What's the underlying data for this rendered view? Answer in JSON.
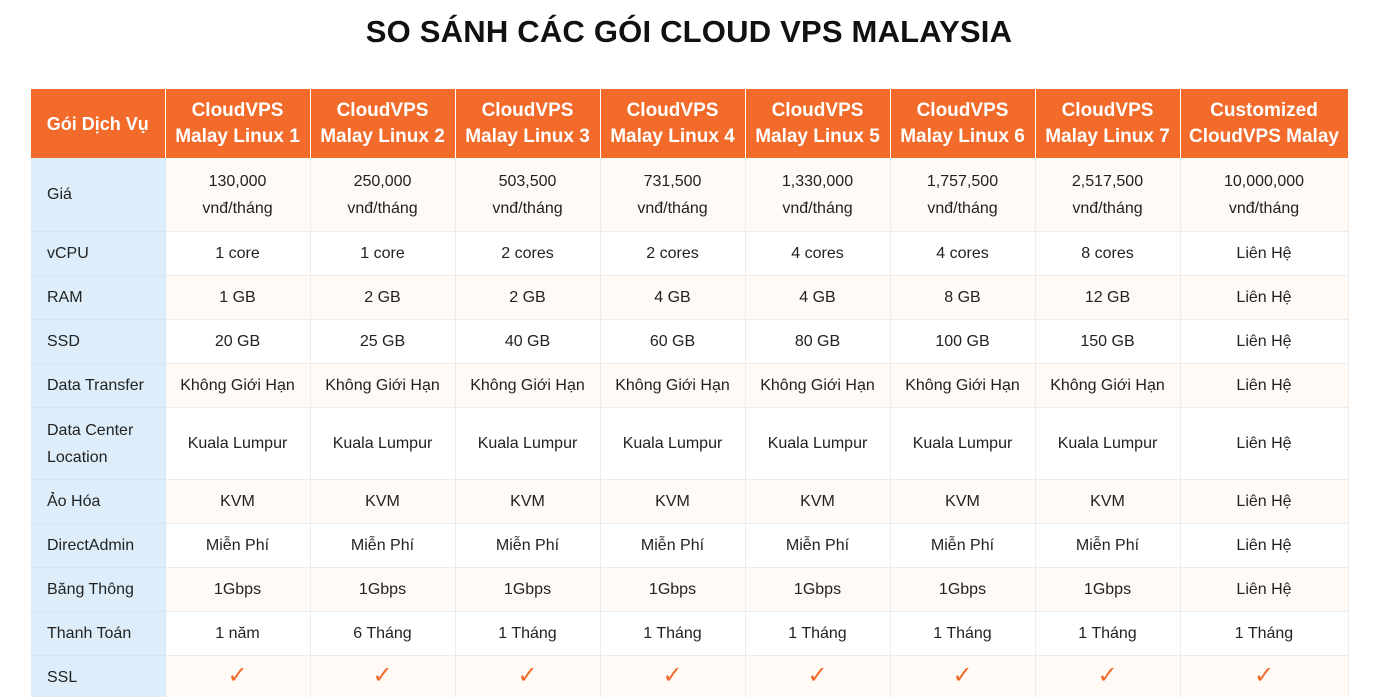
{
  "title": "SO SÁNH CÁC GÓI CLOUD VPS MALAYSIA",
  "table": {
    "corner_header": "Gói Dịch Vụ",
    "plans": [
      "CloudVPS\nMalay Linux 1",
      "CloudVPS\nMalay Linux 2",
      "CloudVPS\nMalay Linux 3",
      "CloudVPS\nMalay Linux 4",
      "CloudVPS\nMalay Linux 5",
      "CloudVPS\nMalay Linux 6",
      "CloudVPS\nMalay Linux 7",
      "Customized\nCloudVPS Malay"
    ],
    "rows": [
      {
        "label": "Giá",
        "values": [
          "130,000\nvnđ/tháng",
          "250,000\nvnđ/tháng",
          "503,500\nvnđ/tháng",
          "731,500\nvnđ/tháng",
          "1,330,000\nvnđ/tháng",
          "1,757,500\nvnđ/tháng",
          "2,517,500\nvnđ/tháng",
          "10,000,000\nvnđ/tháng"
        ]
      },
      {
        "label": "vCPU",
        "values": [
          "1 core",
          "1 core",
          "2 cores",
          "2 cores",
          "4 cores",
          "4 cores",
          "8 cores",
          "Liên Hệ"
        ]
      },
      {
        "label": "RAM",
        "values": [
          "1 GB",
          "2 GB",
          "2 GB",
          "4 GB",
          "4 GB",
          "8 GB",
          "12 GB",
          "Liên Hệ"
        ]
      },
      {
        "label": "SSD",
        "values": [
          "20 GB",
          "25 GB",
          "40 GB",
          "60 GB",
          "80 GB",
          "100 GB",
          "150 GB",
          "Liên Hệ"
        ]
      },
      {
        "label": "Data Transfer",
        "values": [
          "Không Giới Hạn",
          "Không Giới Hạn",
          "Không Giới Hạn",
          "Không Giới Hạn",
          "Không Giới Hạn",
          "Không Giới Hạn",
          "Không Giới Hạn",
          "Liên Hệ"
        ]
      },
      {
        "label": "Data Center\nLocation",
        "values": [
          "Kuala Lumpur",
          "Kuala Lumpur",
          "Kuala Lumpur",
          "Kuala Lumpur",
          "Kuala Lumpur",
          "Kuala Lumpur",
          "Kuala Lumpur",
          "Liên Hệ"
        ]
      },
      {
        "label": "Ảo Hóa",
        "values": [
          "KVM",
          "KVM",
          "KVM",
          "KVM",
          "KVM",
          "KVM",
          "KVM",
          "Liên Hệ"
        ]
      },
      {
        "label": "DirectAdmin",
        "values": [
          "Miễn Phí",
          "Miễn Phí",
          "Miễn Phí",
          "Miễn Phí",
          "Miễn Phí",
          "Miễn Phí",
          "Miễn Phí",
          "Liên Hệ"
        ]
      },
      {
        "label": "Băng Thông",
        "values": [
          "1Gbps",
          "1Gbps",
          "1Gbps",
          "1Gbps",
          "1Gbps",
          "1Gbps",
          "1Gbps",
          "Liên Hệ"
        ]
      },
      {
        "label": "Thanh Toán",
        "values": [
          "1 năm",
          "6 Tháng",
          "1 Tháng",
          "1 Tháng",
          "1 Tháng",
          "1 Tháng",
          "1 Tháng",
          "1 Tháng"
        ]
      },
      {
        "label": "SSL",
        "values": [
          "✓",
          "✓",
          "✓",
          "✓",
          "✓",
          "✓",
          "✓",
          "✓"
        ]
      }
    ]
  },
  "colors": {
    "header_bg": "#f26b2a",
    "label_col_bg": "#ddeefa",
    "check": "#f26b2a"
  },
  "icons": {
    "ssl_included": "check-icon"
  }
}
